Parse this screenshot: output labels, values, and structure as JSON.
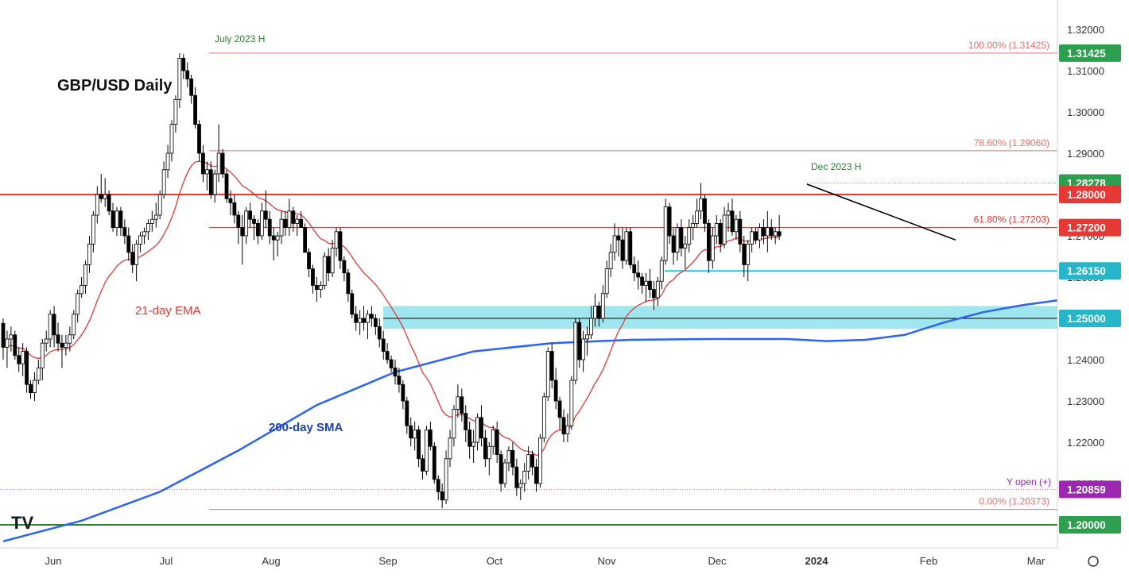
{
  "chart_data": {
    "type": "candlestick",
    "title": "GBP/USD Daily",
    "ylim": [
      1.1945,
      1.3235
    ],
    "y_ticks": [
      "1.32000",
      "1.31000",
      "1.30000",
      "1.29000",
      "1.28000",
      "1.27000",
      "1.26000",
      "1.25000",
      "1.24000",
      "1.23000",
      "1.22000",
      "1.21000",
      "1.20000"
    ],
    "x_labels": [
      "Jun",
      "Jul",
      "Aug",
      "Sep",
      "Oct",
      "Nov",
      "Dec",
      "2024",
      "Feb",
      "Mar"
    ],
    "candles_ohlc": [
      [
        1.2488,
        1.25,
        1.24,
        1.243
      ],
      [
        1.243,
        1.247,
        1.238,
        1.245
      ],
      [
        1.245,
        1.248,
        1.242,
        1.246
      ],
      [
        1.246,
        1.247,
        1.24,
        1.241
      ],
      [
        1.241,
        1.243,
        1.237,
        1.239
      ],
      [
        1.239,
        1.244,
        1.236,
        1.242
      ],
      [
        1.242,
        1.243,
        1.232,
        1.234
      ],
      [
        1.234,
        1.235,
        1.2305,
        1.232
      ],
      [
        1.232,
        1.237,
        1.23,
        1.235
      ],
      [
        1.235,
        1.24,
        1.234,
        1.238
      ],
      [
        1.238,
        1.245,
        1.235,
        1.244
      ],
      [
        1.244,
        1.247,
        1.242,
        1.245
      ],
      [
        1.245,
        1.252,
        1.243,
        1.251
      ],
      [
        1.251,
        1.253,
        1.243,
        1.246
      ],
      [
        1.246,
        1.249,
        1.242,
        1.244
      ],
      [
        1.244,
        1.246,
        1.238,
        1.243
      ],
      [
        1.243,
        1.246,
        1.241,
        1.244
      ],
      [
        1.244,
        1.248,
        1.242,
        1.246
      ],
      [
        1.246,
        1.252,
        1.245,
        1.251
      ],
      [
        1.251,
        1.257,
        1.249,
        1.256
      ],
      [
        1.256,
        1.26,
        1.255,
        1.258
      ],
      [
        1.258,
        1.264,
        1.256,
        1.263
      ],
      [
        1.263,
        1.27,
        1.261,
        1.268
      ],
      [
        1.268,
        1.276,
        1.266,
        1.275
      ],
      [
        1.275,
        1.282,
        1.273,
        1.28
      ],
      [
        1.28,
        1.285,
        1.278,
        1.279
      ],
      [
        1.279,
        1.284,
        1.277,
        1.28
      ],
      [
        1.28,
        1.281,
        1.275,
        1.276
      ],
      [
        1.276,
        1.278,
        1.271,
        1.272
      ],
      [
        1.272,
        1.277,
        1.27,
        1.276
      ],
      [
        1.276,
        1.277,
        1.27,
        1.272
      ],
      [
        1.272,
        1.274,
        1.268,
        1.27
      ],
      [
        1.27,
        1.272,
        1.264,
        1.266
      ],
      [
        1.266,
        1.268,
        1.261,
        1.263
      ],
      [
        1.263,
        1.269,
        1.259,
        1.268
      ],
      [
        1.268,
        1.271,
        1.266,
        1.27
      ],
      [
        1.27,
        1.272,
        1.268,
        1.271
      ],
      [
        1.271,
        1.274,
        1.269,
        1.273
      ],
      [
        1.273,
        1.276,
        1.271,
        1.274
      ],
      [
        1.274,
        1.278,
        1.272,
        1.275
      ],
      [
        1.275,
        1.281,
        1.274,
        1.28
      ],
      [
        1.28,
        1.288,
        1.279,
        1.286
      ],
      [
        1.286,
        1.292,
        1.284,
        1.29
      ],
      [
        1.29,
        1.298,
        1.288,
        1.297
      ],
      [
        1.297,
        1.304,
        1.295,
        1.303
      ],
      [
        1.303,
        1.3142,
        1.301,
        1.313
      ],
      [
        1.313,
        1.314,
        1.308,
        1.31
      ],
      [
        1.31,
        1.312,
        1.306,
        1.308
      ],
      [
        1.308,
        1.309,
        1.302,
        1.304
      ],
      [
        1.304,
        1.306,
        1.296,
        1.297
      ],
      [
        1.297,
        1.298,
        1.288,
        1.29
      ],
      [
        1.29,
        1.292,
        1.283,
        1.285
      ],
      [
        1.285,
        1.288,
        1.281,
        1.286
      ],
      [
        1.286,
        1.288,
        1.279,
        1.28
      ],
      [
        1.28,
        1.286,
        1.278,
        1.285
      ],
      [
        1.285,
        1.297,
        1.283,
        1.29
      ],
      [
        1.29,
        1.291,
        1.284,
        1.285
      ],
      [
        1.285,
        1.286,
        1.278,
        1.279
      ],
      [
        1.279,
        1.281,
        1.275,
        1.278
      ],
      [
        1.278,
        1.28,
        1.273,
        1.275
      ],
      [
        1.275,
        1.276,
        1.268,
        1.272
      ],
      [
        1.272,
        1.275,
        1.263,
        1.27
      ],
      [
        1.27,
        1.277,
        1.268,
        1.276
      ],
      [
        1.276,
        1.278,
        1.272,
        1.274
      ],
      [
        1.274,
        1.275,
        1.269,
        1.273
      ],
      [
        1.273,
        1.274,
        1.268,
        1.27
      ],
      [
        1.27,
        1.278,
        1.269,
        1.276
      ],
      [
        1.276,
        1.281,
        1.272,
        1.274
      ],
      [
        1.274,
        1.276,
        1.268,
        1.27
      ],
      [
        1.27,
        1.272,
        1.264,
        1.269
      ],
      [
        1.269,
        1.271,
        1.265,
        1.27
      ],
      [
        1.27,
        1.276,
        1.268,
        1.274
      ],
      [
        1.274,
        1.276,
        1.27,
        1.272
      ],
      [
        1.272,
        1.279,
        1.27,
        1.276
      ],
      [
        1.276,
        1.277,
        1.271,
        1.273
      ],
      [
        1.273,
        1.275,
        1.27,
        1.274
      ],
      [
        1.274,
        1.276,
        1.272,
        1.272
      ],
      [
        1.272,
        1.273,
        1.266,
        1.266
      ],
      [
        1.266,
        1.267,
        1.26,
        1.262
      ],
      [
        1.262,
        1.263,
        1.256,
        1.258
      ],
      [
        1.258,
        1.26,
        1.254,
        1.257
      ],
      [
        1.257,
        1.259,
        1.255,
        1.258
      ],
      [
        1.258,
        1.266,
        1.257,
        1.265
      ],
      [
        1.265,
        1.267,
        1.259,
        1.261
      ],
      [
        1.261,
        1.269,
        1.26,
        1.267
      ],
      [
        1.267,
        1.272,
        1.265,
        1.271
      ],
      [
        1.271,
        1.272,
        1.262,
        1.264
      ],
      [
        1.264,
        1.265,
        1.259,
        1.261
      ],
      [
        1.261,
        1.262,
        1.254,
        1.256
      ],
      [
        1.256,
        1.257,
        1.25,
        1.251
      ],
      [
        1.251,
        1.253,
        1.247,
        1.249
      ],
      [
        1.249,
        1.252,
        1.246,
        1.25
      ],
      [
        1.25,
        1.253,
        1.247,
        1.249
      ],
      [
        1.249,
        1.252,
        1.245,
        1.251
      ],
      [
        1.251,
        1.253,
        1.248,
        1.25
      ],
      [
        1.25,
        1.251,
        1.246,
        1.248
      ],
      [
        1.248,
        1.25,
        1.243,
        1.245
      ],
      [
        1.245,
        1.247,
        1.24,
        1.242
      ],
      [
        1.242,
        1.244,
        1.239,
        1.24
      ],
      [
        1.24,
        1.241,
        1.237,
        1.238
      ],
      [
        1.238,
        1.24,
        1.234,
        1.236
      ],
      [
        1.236,
        1.238,
        1.232,
        1.234
      ],
      [
        1.234,
        1.235,
        1.228,
        1.23
      ],
      [
        1.23,
        1.231,
        1.222,
        1.224
      ],
      [
        1.224,
        1.226,
        1.219,
        1.221
      ],
      [
        1.221,
        1.225,
        1.218,
        1.223
      ],
      [
        1.223,
        1.224,
        1.214,
        1.216
      ],
      [
        1.216,
        1.217,
        1.211,
        1.213
      ],
      [
        1.213,
        1.224,
        1.212,
        1.223
      ],
      [
        1.223,
        1.225,
        1.218,
        1.219
      ],
      [
        1.219,
        1.22,
        1.21,
        1.211
      ],
      [
        1.211,
        1.212,
        1.206,
        1.208
      ],
      [
        1.208,
        1.21,
        1.204,
        1.206
      ],
      [
        1.206,
        1.218,
        1.205,
        1.216
      ],
      [
        1.216,
        1.223,
        1.214,
        1.221
      ],
      [
        1.221,
        1.229,
        1.219,
        1.228
      ],
      [
        1.228,
        1.234,
        1.226,
        1.231
      ],
      [
        1.231,
        1.233,
        1.225,
        1.227
      ],
      [
        1.227,
        1.229,
        1.22,
        1.223
      ],
      [
        1.223,
        1.225,
        1.216,
        1.219
      ],
      [
        1.219,
        1.223,
        1.215,
        1.22
      ],
      [
        1.22,
        1.227,
        1.218,
        1.226
      ],
      [
        1.226,
        1.229,
        1.219,
        1.221
      ],
      [
        1.221,
        1.223,
        1.214,
        1.216
      ],
      [
        1.216,
        1.22,
        1.212,
        1.219
      ],
      [
        1.219,
        1.224,
        1.217,
        1.223
      ],
      [
        1.223,
        1.225,
        1.215,
        1.217
      ],
      [
        1.217,
        1.218,
        1.208,
        1.21
      ],
      [
        1.21,
        1.216,
        1.209,
        1.215
      ],
      [
        1.215,
        1.219,
        1.213,
        1.218
      ],
      [
        1.218,
        1.22,
        1.212,
        1.214
      ],
      [
        1.214,
        1.216,
        1.207,
        1.209
      ],
      [
        1.209,
        1.211,
        1.206,
        1.21
      ],
      [
        1.21,
        1.215,
        1.208,
        1.213
      ],
      [
        1.213,
        1.219,
        1.211,
        1.217
      ],
      [
        1.217,
        1.218,
        1.212,
        1.214
      ],
      [
        1.214,
        1.216,
        1.208,
        1.21
      ],
      [
        1.21,
        1.222,
        1.209,
        1.221
      ],
      [
        1.221,
        1.232,
        1.22,
        1.231
      ],
      [
        1.231,
        1.243,
        1.23,
        1.242
      ],
      [
        1.242,
        1.244,
        1.233,
        1.235
      ],
      [
        1.235,
        1.238,
        1.228,
        1.23
      ],
      [
        1.23,
        1.231,
        1.223,
        1.226
      ],
      [
        1.226,
        1.228,
        1.22,
        1.222
      ],
      [
        1.222,
        1.227,
        1.22,
        1.224
      ],
      [
        1.224,
        1.236,
        1.223,
        1.235
      ],
      [
        1.235,
        1.25,
        1.234,
        1.249
      ],
      [
        1.249,
        1.25,
        1.238,
        1.24
      ],
      [
        1.24,
        1.247,
        1.237,
        1.245
      ],
      [
        1.245,
        1.248,
        1.241,
        1.246
      ],
      [
        1.246,
        1.253,
        1.245,
        1.25
      ],
      [
        1.25,
        1.256,
        1.248,
        1.253
      ],
      [
        1.253,
        1.254,
        1.248,
        1.25
      ],
      [
        1.25,
        1.258,
        1.249,
        1.256
      ],
      [
        1.256,
        1.264,
        1.255,
        1.262
      ],
      [
        1.262,
        1.268,
        1.26,
        1.266
      ],
      [
        1.266,
        1.273,
        1.264,
        1.27
      ],
      [
        1.27,
        1.272,
        1.265,
        1.269
      ],
      [
        1.269,
        1.272,
        1.262,
        1.264
      ],
      [
        1.264,
        1.272,
        1.263,
        1.271
      ],
      [
        1.271,
        1.272,
        1.262,
        1.263
      ],
      [
        1.263,
        1.265,
        1.259,
        1.261
      ],
      [
        1.261,
        1.264,
        1.257,
        1.26
      ],
      [
        1.26,
        1.261,
        1.256,
        1.258
      ],
      [
        1.258,
        1.261,
        1.254,
        1.259
      ],
      [
        1.259,
        1.262,
        1.255,
        1.257
      ],
      [
        1.257,
        1.259,
        1.252,
        1.255
      ],
      [
        1.255,
        1.26,
        1.253,
        1.259
      ],
      [
        1.259,
        1.265,
        1.257,
        1.264
      ],
      [
        1.264,
        1.279,
        1.263,
        1.277
      ],
      [
        1.277,
        1.278,
        1.268,
        1.27
      ],
      [
        1.27,
        1.272,
        1.263,
        1.266
      ],
      [
        1.266,
        1.273,
        1.264,
        1.272
      ],
      [
        1.272,
        1.274,
        1.265,
        1.267
      ],
      [
        1.267,
        1.27,
        1.262,
        1.268
      ],
      [
        1.268,
        1.274,
        1.266,
        1.272
      ],
      [
        1.272,
        1.275,
        1.269,
        1.273
      ],
      [
        1.273,
        1.279,
        1.272,
        1.276
      ],
      [
        1.276,
        1.2828,
        1.274,
        1.279
      ],
      [
        1.279,
        1.28,
        1.271,
        1.273
      ],
      [
        1.273,
        1.274,
        1.261,
        1.264
      ],
      [
        1.264,
        1.272,
        1.262,
        1.27
      ],
      [
        1.27,
        1.275,
        1.268,
        1.273
      ],
      [
        1.273,
        1.274,
        1.266,
        1.268
      ],
      [
        1.268,
        1.277,
        1.267,
        1.275
      ],
      [
        1.275,
        1.278,
        1.271,
        1.276
      ],
      [
        1.276,
        1.279,
        1.27,
        1.271
      ],
      [
        1.271,
        1.275,
        1.269,
        1.274
      ],
      [
        1.274,
        1.276,
        1.266,
        1.268
      ],
      [
        1.268,
        1.27,
        1.26,
        1.263
      ],
      [
        1.263,
        1.269,
        1.259,
        1.268
      ],
      [
        1.268,
        1.272,
        1.266,
        1.271
      ],
      [
        1.271,
        1.272,
        1.268,
        1.269
      ],
      [
        1.269,
        1.273,
        1.267,
        1.272
      ],
      [
        1.272,
        1.274,
        1.268,
        1.27
      ],
      [
        1.27,
        1.276,
        1.266,
        1.272
      ],
      [
        1.272,
        1.274,
        1.269,
        1.27
      ],
      [
        1.27,
        1.272,
        1.268,
        1.271
      ],
      [
        1.271,
        1.275,
        1.269,
        1.27
      ]
    ],
    "ema21_label": "21-day EMA",
    "sma200_label": "200-day SMA",
    "ema21_color": "#e53935",
    "sma200_color": "#2962ff",
    "sma200_points": [
      [
        0,
        1.196
      ],
      [
        20,
        1.201
      ],
      [
        40,
        1.208
      ],
      [
        60,
        1.218
      ],
      [
        80,
        1.229
      ],
      [
        100,
        1.237
      ],
      [
        120,
        1.242
      ],
      [
        140,
        1.244
      ],
      [
        160,
        1.2448
      ],
      [
        180,
        1.245
      ],
      [
        200,
        1.245
      ],
      [
        210,
        1.2445
      ],
      [
        220,
        1.2448
      ],
      [
        230,
        1.246
      ],
      [
        240,
        1.249
      ],
      [
        250,
        1.2515
      ],
      [
        260,
        1.2532
      ],
      [
        270,
        1.2545
      ],
      [
        278,
        1.2555
      ]
    ],
    "levels": [
      {
        "name": "fib-100",
        "value": 1.31425,
        "label": "100.00% (1.31425)",
        "color": "#e57373"
      },
      {
        "name": "fib-786",
        "value": 1.2906,
        "label": "78.60% (1.29060)",
        "color": "#e57373"
      },
      {
        "name": "fib-618",
        "value": 1.27203,
        "label": "61.80% (1.27203)",
        "color": "#e53935"
      },
      {
        "name": "fib-0",
        "value": 1.20373,
        "label": "0.00% (1.20373)",
        "color": "#e57373"
      },
      {
        "name": "resistance-128",
        "value": 1.28,
        "color": "#e53935"
      },
      {
        "name": "support-12615",
        "value": 1.2615,
        "color": "#26c6da"
      },
      {
        "name": "support-125",
        "value": 1.25,
        "color": "#000000"
      },
      {
        "name": "support-12",
        "value": 1.2,
        "color": "#2e7d32"
      }
    ],
    "zone": {
      "from": 1.2475,
      "to": 1.253,
      "color": "#80deea"
    },
    "trendline": {
      "from": [
        1.2825
      ],
      "to": [
        1.269
      ],
      "color": "#000000"
    },
    "annotations": [
      {
        "text": "July 2023 H",
        "color": "#2e7d32"
      },
      {
        "text": "Dec 2023 H",
        "color": "#2e7d32"
      },
      {
        "text": "Y open (+)",
        "color": "#9c27b0"
      }
    ],
    "price_tags": [
      {
        "text": "1.31425",
        "value": 1.31425,
        "color": "#2e9e4f"
      },
      {
        "text": "1.28278",
        "value": 1.28278,
        "color": "#2e9e4f"
      },
      {
        "text": "1.28000",
        "value": 1.28,
        "color": "#e53935"
      },
      {
        "text": "1.27200",
        "value": 1.272,
        "color": "#e53935"
      },
      {
        "text": "1.26150",
        "value": 1.2615,
        "color": "#26b5c9"
      },
      {
        "text": "1.25000",
        "value": 1.25,
        "color": "#26b5c9"
      },
      {
        "text": "1.20859",
        "value": 1.20859,
        "color": "#9c27b0"
      },
      {
        "text": "1.20000",
        "value": 1.2,
        "color": "#2e9e4f"
      }
    ],
    "logo": "TV"
  }
}
